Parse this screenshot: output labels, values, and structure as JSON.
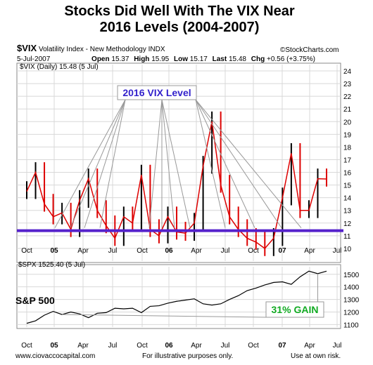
{
  "title_line1": "Stocks Did Well With The VIX Near",
  "title_line2": "2016 Levels (2004-2007)",
  "header": {
    "symbol": "$VIX",
    "name": "Volatility Index - New Methodology",
    "exchange": "INDX",
    "date": "5-Jul-2007",
    "open_label": "Open",
    "open": "15.37",
    "high_label": "High",
    "high": "15.95",
    "low_label": "Low",
    "low": "15.17",
    "last_label": "Last",
    "last": "15.48",
    "chg_label": "Chg",
    "chg": "+0.56 (+3.75%)",
    "source": "©StockCharts.com",
    "vix_legend": "$VIX (Daily) 15.48 (5 Jul)",
    "spx_legend": "$SPX 1525.40 (5 Jul)"
  },
  "annotations": {
    "vix_level": "2016 VIX Level",
    "sp500": "S&P 500",
    "gain": "31% GAIN"
  },
  "footer": {
    "left": "www.ciovaccocapital.com",
    "middle": "For illustrative purposes only.",
    "right": "Use at own risk."
  },
  "colors": {
    "vix_up": "#000000",
    "vix_down": "#dd0000",
    "level_line": "#5522cc",
    "label_text": "#3322cc",
    "gain_text": "#11aa22",
    "grid": "#d8d8d8"
  },
  "chart_data": [
    {
      "type": "line",
      "title": "$VIX (Daily) 15.48 (5 Jul)",
      "x_ticks": [
        "Oct",
        "05",
        "Apr",
        "Jul",
        "Oct",
        "06",
        "Apr",
        "Jul",
        "Oct",
        "07",
        "Apr",
        "Jul"
      ],
      "y_ticks": [
        10,
        11,
        12,
        13,
        14,
        15,
        16,
        17,
        18,
        19,
        20,
        21,
        22,
        23,
        24
      ],
      "ylim": [
        9.0,
        24.5
      ],
      "reference_line": 11.4,
      "x": [
        "2004-09",
        "2004-10",
        "2004-11",
        "2004-12",
        "2005-01",
        "2005-02",
        "2005-03",
        "2005-04",
        "2005-05",
        "2005-06",
        "2005-07",
        "2005-08",
        "2005-09",
        "2005-10",
        "2005-11",
        "2005-12",
        "2006-01",
        "2006-02",
        "2006-03",
        "2006-04",
        "2006-05",
        "2006-06",
        "2006-07",
        "2006-08",
        "2006-09",
        "2006-10",
        "2006-11",
        "2006-12",
        "2007-01",
        "2007-02",
        "2007-03",
        "2007-04",
        "2007-05",
        "2007-06",
        "2007-07"
      ],
      "values": [
        14.5,
        16.0,
        13.5,
        12.5,
        12.8,
        11.5,
        13.8,
        15.5,
        13.0,
        11.8,
        10.8,
        12.5,
        12.0,
        15.8,
        11.5,
        11.0,
        12.5,
        11.3,
        11.2,
        12.0,
        16.5,
        20.0,
        15.0,
        12.5,
        11.5,
        10.8,
        10.5,
        10.0,
        10.8,
        14.0,
        17.5,
        13.0,
        13.0,
        15.5,
        15.48
      ]
    },
    {
      "type": "line",
      "title": "$SPX 1525.40 (5 Jul)",
      "x_ticks": [
        "Oct",
        "05",
        "Apr",
        "Jul",
        "Oct",
        "06",
        "Apr",
        "Jul",
        "Oct",
        "07",
        "Apr",
        "Jul"
      ],
      "y_ticks": [
        1100,
        1200,
        1300,
        1400,
        1500
      ],
      "ylim": [
        1080,
        1560
      ],
      "x": [
        "2004-09",
        "2004-10",
        "2004-11",
        "2004-12",
        "2005-01",
        "2005-02",
        "2005-03",
        "2005-04",
        "2005-05",
        "2005-06",
        "2005-07",
        "2005-08",
        "2005-09",
        "2005-10",
        "2005-11",
        "2005-12",
        "2006-01",
        "2006-02",
        "2006-03",
        "2006-04",
        "2006-05",
        "2006-06",
        "2006-07",
        "2006-08",
        "2006-09",
        "2006-10",
        "2006-11",
        "2006-12",
        "2007-01",
        "2007-02",
        "2007-03",
        "2007-04",
        "2007-05",
        "2007-06",
        "2007-07"
      ],
      "values": [
        1110,
        1130,
        1175,
        1205,
        1180,
        1200,
        1185,
        1155,
        1190,
        1195,
        1230,
        1225,
        1230,
        1195,
        1245,
        1250,
        1270,
        1285,
        1295,
        1305,
        1265,
        1255,
        1265,
        1300,
        1330,
        1370,
        1390,
        1415,
        1435,
        1440,
        1420,
        1480,
        1525,
        1505,
        1525
      ]
    }
  ]
}
